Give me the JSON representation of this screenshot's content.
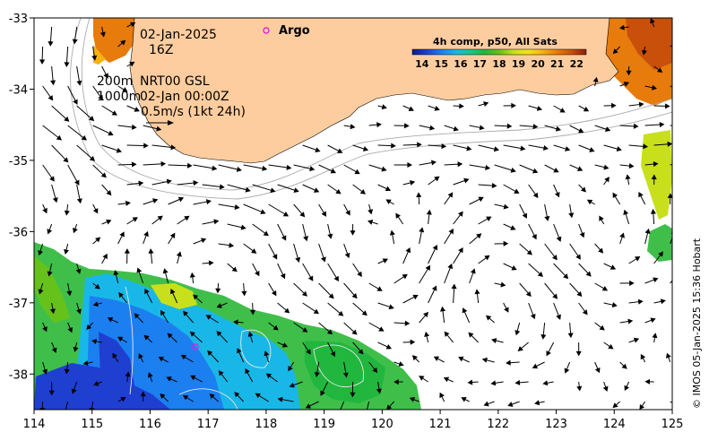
{
  "map": {
    "lon_range": [
      114,
      125
    ],
    "lat_range": [
      -38.5,
      -33
    ],
    "lon_ticks": [
      "114",
      "115",
      "116",
      "117",
      "118",
      "119",
      "120",
      "121",
      "122",
      "123",
      "124",
      "125"
    ],
    "lat_ticks": [
      "-33",
      "-34",
      "-35",
      "-36",
      "-37",
      "-38"
    ],
    "land_color": "#fdcd9f",
    "arrow_color": "#000000",
    "contour_color": "#aaaaaa"
  },
  "annotations": {
    "date": "02-Jan-2025",
    "hour": "16Z",
    "contour_depths": "200m",
    "contour_depths2": "1000m",
    "model_label": "NRT00 GSL",
    "model_time": "02-Jan 00:00Z",
    "scale_label": "0.5m/s (1kt 24h)",
    "argo_label": "Argo",
    "argo_marker_color": "#e020e0"
  },
  "colorbar": {
    "title": "4h comp, p50, All Sats",
    "ticks": [
      "14",
      "15",
      "16",
      "17",
      "18",
      "19",
      "20",
      "21",
      "22"
    ],
    "min": 13.5,
    "max": 22.5,
    "colors": [
      "#0b1a8c",
      "#1f3fd1",
      "#1c7ff0",
      "#19b7e8",
      "#16c98a",
      "#21b63d",
      "#66c21a",
      "#c8e01c",
      "#f4e31a",
      "#f5b210",
      "#e77b0b",
      "#c8500b",
      "#8c1e08"
    ]
  },
  "credit": "© IMOS 05-Jan-2025 15:36 Hobart"
}
